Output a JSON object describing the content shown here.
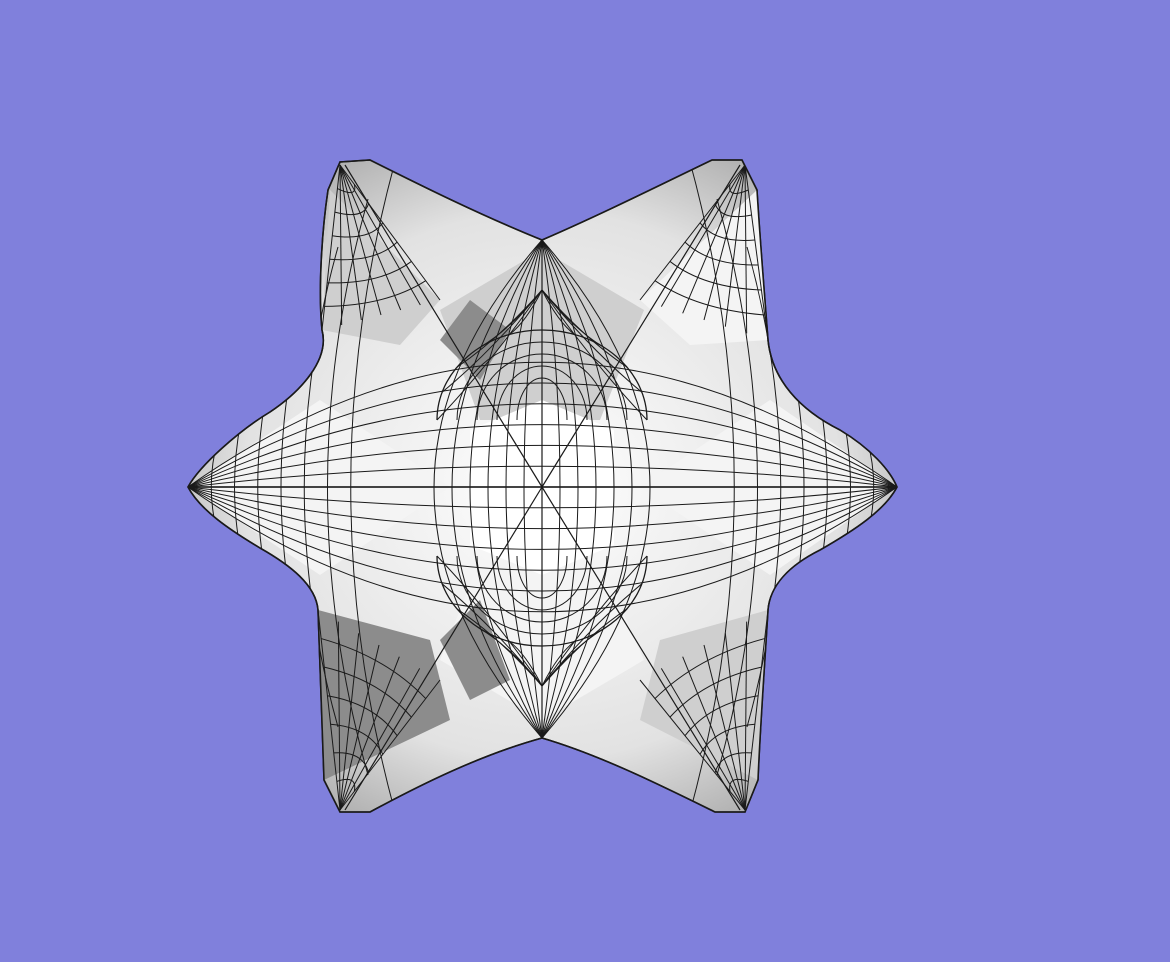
{
  "viewport": {
    "background": "#8080dc",
    "mesh": {
      "shape": "six-pointed star quad mesh",
      "face_light": "#f4f4f4",
      "face_mid": "#cfcfcf",
      "face_dark": "#8c8c8c",
      "edge_color": "#1a1a1a"
    }
  }
}
